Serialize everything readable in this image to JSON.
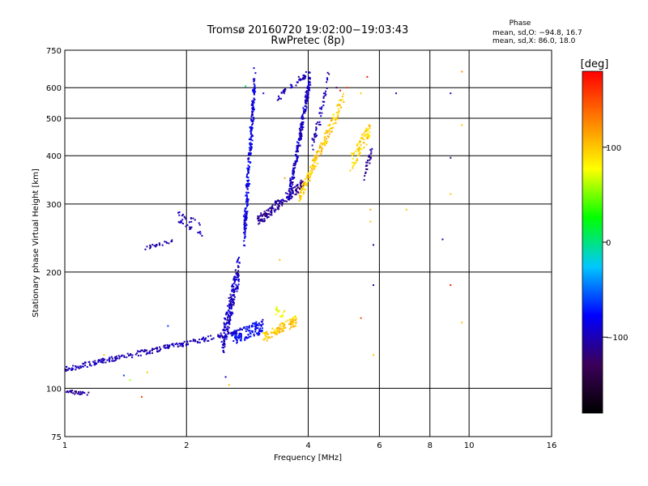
{
  "chart_data": {
    "type": "scatter",
    "title": "Tromsø 20160720 19:02:00−19:03:43",
    "subtitle": "RwPretec (8p)",
    "xlabel": "Frequency [MHz]",
    "ylabel": "Stationary phase Virtual Height [km]",
    "x_scale": "log",
    "y_scale": "log",
    "xlim": [
      1,
      16
    ],
    "ylim": [
      75,
      750
    ],
    "x_ticks": [
      1,
      2,
      4,
      6,
      8,
      10,
      16
    ],
    "x_tick_labels": [
      "1",
      "2",
      "4",
      "6",
      "8",
      "10",
      "16"
    ],
    "y_ticks": [
      75,
      100,
      200,
      300,
      400,
      500,
      600,
      750
    ],
    "y_tick_labels": [
      "75",
      "100",
      "200",
      "300",
      "400",
      "500",
      "600",
      "750"
    ],
    "grid": true,
    "stats": {
      "heading": "Phase",
      "line1": "mean, sd,O: −94.8, 16.7",
      "line2": "mean, sd,X:  86.0, 18.0"
    },
    "colorbar": {
      "label": "[deg]",
      "range": [
        -180,
        180
      ],
      "ticks": [
        100,
        0,
        -100
      ],
      "tick_labels": [
        "100",
        "0",
        "−100"
      ],
      "colors": [
        "#000000",
        "#3c005a",
        "#0000ff",
        "#00c8ff",
        "#00ff00",
        "#ffff00",
        "#ff8000",
        "#ff0000"
      ]
    },
    "traces": [
      {
        "name": "",
        "freq_range": [
          1.0,
          1.15
        ],
        "heights": [
          98,
          97
        ],
        "phase": -110,
        "n": 30,
        "jitter": 0.01
      },
      {
        "name": "",
        "freq_range": [
          1.0,
          2.7
        ],
        "heights": [
          112,
          140
        ],
        "phase": -100,
        "n": 260,
        "jitter": 0.015
      },
      {
        "name": "",
        "freq_range": [
          2.45,
          2.7
        ],
        "heights": [
          130,
          205
        ],
        "phase": -95,
        "n": 200,
        "jitter": 0.08
      },
      {
        "name": "",
        "freq_range": [
          2.6,
          3.1
        ],
        "heights": [
          135,
          145
        ],
        "phase": -80,
        "n": 120,
        "jitter": 0.04
      },
      {
        "name": "",
        "freq_range": [
          3.1,
          3.75
        ],
        "heights": [
          135,
          150
        ],
        "phase": 100,
        "n": 110,
        "jitter": 0.03
      },
      {
        "name": "",
        "freq_range": [
          3.3,
          3.5
        ],
        "heights": [
          160,
          155
        ],
        "phase": 80,
        "n": 15,
        "jitter": 0.03
      },
      {
        "name": "",
        "freq_range": [
          1.55,
          1.85
        ],
        "heights": [
          230,
          240
        ],
        "phase": -105,
        "n": 25,
        "jitter": 0.01
      },
      {
        "name": "",
        "freq_range": [
          1.9,
          2.2
        ],
        "heights": [
          280,
          255
        ],
        "phase": -100,
        "n": 35,
        "jitter": 0.04
      },
      {
        "name": "",
        "freq_range": [
          2.78,
          2.95
        ],
        "heights": [
          250,
          620
        ],
        "phase": -85,
        "n": 260,
        "jitter": 0.09
      },
      {
        "name": "",
        "freq_range": [
          3.0,
          3.9
        ],
        "heights": [
          270,
          340
        ],
        "phase": -110,
        "n": 160,
        "jitter": 0.03
      },
      {
        "name": "",
        "freq_range": [
          3.6,
          4.05
        ],
        "heights": [
          320,
          640
        ],
        "phase": -95,
        "n": 220,
        "jitter": 0.04
      },
      {
        "name": "",
        "freq_range": [
          3.35,
          3.95
        ],
        "heights": [
          560,
          650
        ],
        "phase": -100,
        "n": 45,
        "jitter": 0.02
      },
      {
        "name": "",
        "freq_range": [
          3.8,
          4.9
        ],
        "heights": [
          315,
          560
        ],
        "phase": 100,
        "n": 180,
        "jitter": 0.04
      },
      {
        "name": "",
        "freq_range": [
          4.1,
          4.5
        ],
        "heights": [
          420,
          640
        ],
        "phase": -100,
        "n": 50,
        "jitter": 0.05
      },
      {
        "name": "",
        "freq_range": [
          5.1,
          5.7
        ],
        "heights": [
          380,
          470
        ],
        "phase": 95,
        "n": 80,
        "jitter": 0.05
      },
      {
        "name": "",
        "freq_range": [
          5.5,
          5.8
        ],
        "heights": [
          360,
          420
        ],
        "phase": -110,
        "n": 25,
        "jitter": 0.04
      }
    ],
    "scatter_points": [
      {
        "f": 9.0,
        "h": 580,
        "phase": -100
      },
      {
        "f": 9.0,
        "h": 395,
        "phase": -120
      },
      {
        "f": 9.0,
        "h": 318,
        "phase": 100
      },
      {
        "f": 8.6,
        "h": 243,
        "phase": -100
      },
      {
        "f": 9.0,
        "h": 185,
        "phase": 170
      },
      {
        "f": 9.6,
        "h": 148,
        "phase": 100
      },
      {
        "f": 9.6,
        "h": 480,
        "phase": 100
      },
      {
        "f": 9.6,
        "h": 660,
        "phase": 120
      },
      {
        "f": 5.8,
        "h": 235,
        "phase": -100
      },
      {
        "f": 5.8,
        "h": 185,
        "phase": -100
      },
      {
        "f": 5.8,
        "h": 122,
        "phase": 100
      },
      {
        "f": 5.7,
        "h": 290,
        "phase": 110
      },
      {
        "f": 5.7,
        "h": 270,
        "phase": 100
      },
      {
        "f": 6.6,
        "h": 580,
        "phase": -100
      },
      {
        "f": 7.0,
        "h": 290,
        "phase": 100
      },
      {
        "f": 5.4,
        "h": 152,
        "phase": 150
      },
      {
        "f": 5.0,
        "h": 600,
        "phase": 160
      },
      {
        "f": 4.8,
        "h": 590,
        "phase": 170
      },
      {
        "f": 5.4,
        "h": 580,
        "phase": 100
      },
      {
        "f": 5.6,
        "h": 640,
        "phase": 170
      },
      {
        "f": 3.4,
        "h": 215,
        "phase": 100
      },
      {
        "f": 3.5,
        "h": 350,
        "phase": 110
      },
      {
        "f": 2.55,
        "h": 102,
        "phase": 100
      },
      {
        "f": 2.5,
        "h": 107,
        "phase": -100
      },
      {
        "f": 1.55,
        "h": 95,
        "phase": 150
      },
      {
        "f": 1.45,
        "h": 105,
        "phase": 60
      },
      {
        "f": 1.25,
        "h": 122,
        "phase": 100
      },
      {
        "f": 1.4,
        "h": 108,
        "phase": -60
      },
      {
        "f": 1.8,
        "h": 145,
        "phase": -60
      },
      {
        "f": 1.6,
        "h": 110,
        "phase": 100
      },
      {
        "f": 2.8,
        "h": 605,
        "phase": 0
      },
      {
        "f": 3.1,
        "h": 580,
        "phase": -90
      },
      {
        "f": 4.7,
        "h": 600,
        "phase": -130
      }
    ]
  }
}
